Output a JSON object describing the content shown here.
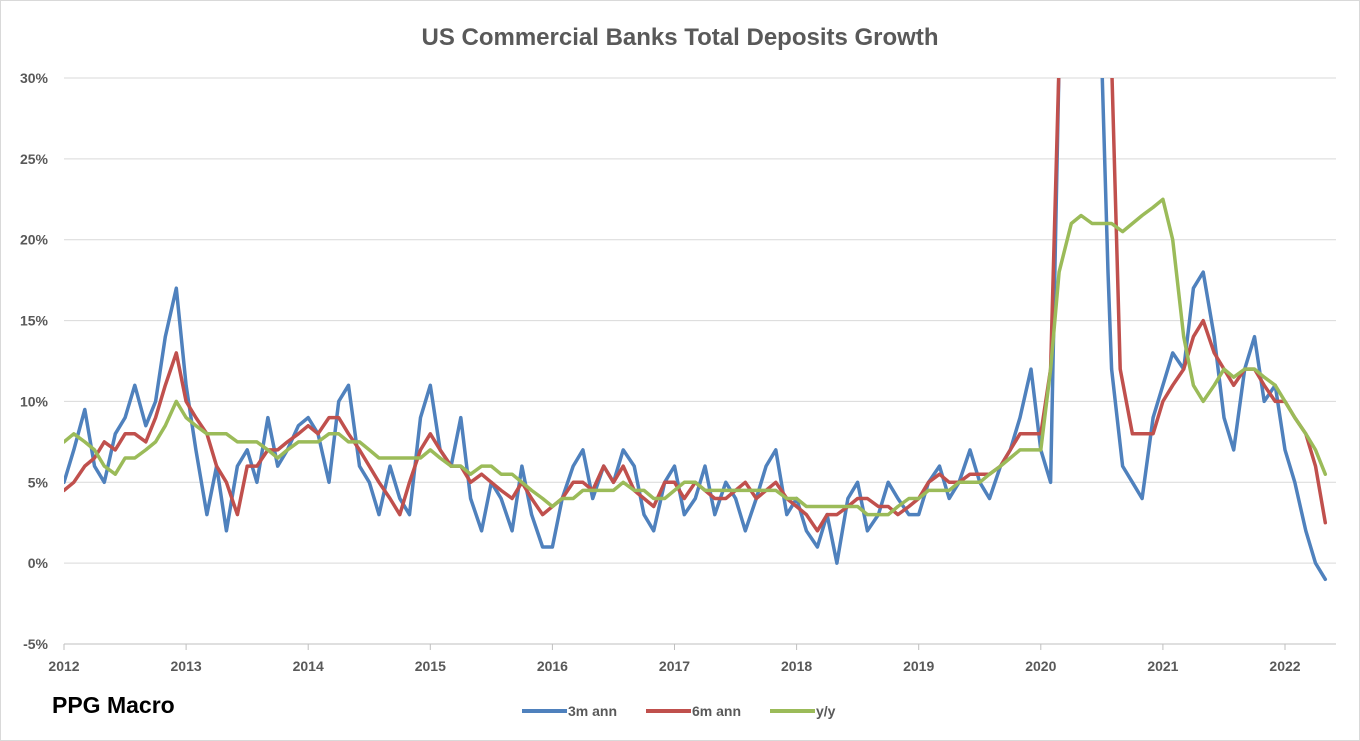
{
  "brand": "PPG Macro",
  "chart_data": {
    "type": "line",
    "title": "US Commercial Banks Total Deposits Growth",
    "xlabel": "",
    "ylabel": "",
    "xlim": [
      2012.0,
      2022.0
    ],
    "ylim": [
      -5,
      30
    ],
    "x_ticks": [
      "2012",
      "2013",
      "2014",
      "2015",
      "2016",
      "2017",
      "2018",
      "2019",
      "2020",
      "2021",
      "2022"
    ],
    "y_ticks": [
      "-5%",
      "0%",
      "5%",
      "10%",
      "15%",
      "20%",
      "25%",
      "30%"
    ],
    "grid": "horizontal",
    "legend_position": "bottom",
    "series": [
      {
        "name": "3m ann",
        "color": "#4f81bd",
        "x": [
          2012.0,
          2012.08,
          2012.17,
          2012.25,
          2012.33,
          2012.42,
          2012.5,
          2012.58,
          2012.67,
          2012.75,
          2012.83,
          2012.92,
          2013.0,
          2013.08,
          2013.17,
          2013.25,
          2013.33,
          2013.42,
          2013.5,
          2013.58,
          2013.67,
          2013.75,
          2013.83,
          2013.92,
          2014.0,
          2014.08,
          2014.17,
          2014.25,
          2014.33,
          2014.42,
          2014.5,
          2014.58,
          2014.67,
          2014.75,
          2014.83,
          2014.92,
          2015.0,
          2015.08,
          2015.17,
          2015.25,
          2015.33,
          2015.42,
          2015.5,
          2015.58,
          2015.67,
          2015.75,
          2015.83,
          2015.92,
          2016.0,
          2016.08,
          2016.17,
          2016.25,
          2016.33,
          2016.42,
          2016.5,
          2016.58,
          2016.67,
          2016.75,
          2016.83,
          2016.92,
          2017.0,
          2017.08,
          2017.17,
          2017.25,
          2017.33,
          2017.42,
          2017.5,
          2017.58,
          2017.67,
          2017.75,
          2017.83,
          2017.92,
          2018.0,
          2018.08,
          2018.17,
          2018.25,
          2018.33,
          2018.42,
          2018.5,
          2018.58,
          2018.67,
          2018.75,
          2018.83,
          2018.92,
          2019.0,
          2019.08,
          2019.17,
          2019.25,
          2019.33,
          2019.42,
          2019.5,
          2019.58,
          2019.67,
          2019.75,
          2019.83,
          2019.92,
          2020.0,
          2020.08,
          2020.15,
          2020.2,
          2020.25,
          2020.33,
          2020.42,
          2020.5,
          2020.55,
          2020.58,
          2020.67,
          2020.75,
          2020.83,
          2020.92,
          2021.0,
          2021.08,
          2021.17,
          2021.25,
          2021.33,
          2021.42,
          2021.5,
          2021.58,
          2021.67,
          2021.75,
          2021.83,
          2021.92,
          2022.0,
          2022.08,
          2022.17,
          2022.25,
          2022.33
        ],
        "values": [
          5,
          7,
          9.5,
          6,
          5,
          8,
          9,
          11,
          8.5,
          10,
          14,
          17,
          11,
          7,
          3,
          6,
          2,
          6,
          7,
          5,
          9,
          6,
          7,
          8.5,
          9,
          8,
          5,
          10,
          11,
          6,
          5,
          3,
          6,
          4,
          3,
          9,
          11,
          7,
          6,
          9,
          4,
          2,
          5,
          4,
          2,
          6,
          3,
          1,
          1,
          4,
          6,
          7,
          4,
          6,
          5,
          7,
          6,
          3,
          2,
          5,
          6,
          3,
          4,
          6,
          3,
          5,
          4,
          2,
          4,
          6,
          7,
          3,
          4,
          2,
          1,
          3,
          0,
          4,
          5,
          2,
          3,
          5,
          4,
          3,
          3,
          5,
          6,
          4,
          5,
          7,
          5,
          4,
          6,
          7,
          9,
          12,
          7,
          5,
          31,
          31,
          31,
          31,
          31,
          31,
          18,
          12,
          6,
          5,
          4,
          9,
          11,
          13,
          12,
          17,
          18,
          14,
          9,
          7,
          12,
          14,
          10,
          11,
          7,
          5,
          2,
          0,
          -1
        ]
      },
      {
        "name": "6m ann",
        "color": "#c0504d",
        "x": [
          2012.0,
          2012.08,
          2012.17,
          2012.25,
          2012.33,
          2012.42,
          2012.5,
          2012.58,
          2012.67,
          2012.75,
          2012.83,
          2012.92,
          2013.0,
          2013.08,
          2013.17,
          2013.25,
          2013.33,
          2013.42,
          2013.5,
          2013.58,
          2013.67,
          2013.75,
          2013.83,
          2013.92,
          2014.0,
          2014.08,
          2014.17,
          2014.25,
          2014.33,
          2014.42,
          2014.5,
          2014.58,
          2014.67,
          2014.75,
          2014.83,
          2014.92,
          2015.0,
          2015.08,
          2015.17,
          2015.25,
          2015.33,
          2015.42,
          2015.5,
          2015.58,
          2015.67,
          2015.75,
          2015.83,
          2015.92,
          2016.0,
          2016.08,
          2016.17,
          2016.25,
          2016.33,
          2016.42,
          2016.5,
          2016.58,
          2016.67,
          2016.75,
          2016.83,
          2016.92,
          2017.0,
          2017.08,
          2017.17,
          2017.25,
          2017.33,
          2017.42,
          2017.5,
          2017.58,
          2017.67,
          2017.75,
          2017.83,
          2017.92,
          2018.0,
          2018.08,
          2018.17,
          2018.25,
          2018.33,
          2018.42,
          2018.5,
          2018.58,
          2018.67,
          2018.75,
          2018.83,
          2018.92,
          2019.0,
          2019.08,
          2019.17,
          2019.25,
          2019.33,
          2019.42,
          2019.5,
          2019.58,
          2019.67,
          2019.75,
          2019.83,
          2019.92,
          2020.0,
          2020.08,
          2020.15,
          2020.2,
          2020.25,
          2020.33,
          2020.42,
          2020.5,
          2020.58,
          2020.65,
          2020.75,
          2020.83,
          2020.92,
          2021.0,
          2021.08,
          2021.17,
          2021.25,
          2021.33,
          2021.42,
          2021.5,
          2021.58,
          2021.67,
          2021.75,
          2021.83,
          2021.92,
          2022.0,
          2022.08,
          2022.17,
          2022.25,
          2022.33
        ],
        "values": [
          4.5,
          5,
          6,
          6.5,
          7.5,
          7,
          8,
          8,
          7.5,
          9,
          11,
          13,
          10,
          9,
          8,
          6,
          5,
          3,
          6,
          6,
          7,
          7,
          7.5,
          8,
          8.5,
          8,
          9,
          9,
          8,
          7,
          6,
          5,
          4,
          3,
          5,
          7,
          8,
          7,
          6,
          6,
          5,
          5.5,
          5,
          4.5,
          4,
          5,
          4,
          3,
          3.5,
          4,
          5,
          5,
          4.5,
          6,
          5,
          6,
          4.5,
          4,
          3.5,
          5,
          5,
          4,
          5,
          4.5,
          4,
          4,
          4.5,
          5,
          4,
          4.5,
          5,
          4,
          3.5,
          3,
          2,
          3,
          3,
          3.5,
          4,
          4,
          3.5,
          3.5,
          3,
          3.5,
          4,
          5,
          5.5,
          5,
          5,
          5.5,
          5.5,
          5.5,
          6,
          7,
          8,
          8,
          8,
          12,
          31,
          31,
          31,
          31,
          31,
          31,
          31,
          12,
          8,
          8,
          8,
          10,
          11,
          12,
          14,
          15,
          13,
          12,
          11,
          12,
          12,
          11,
          10,
          10,
          9,
          8,
          6,
          2.5
        ]
      },
      {
        "name": "y/y",
        "color": "#9bbb59",
        "x": [
          2012.0,
          2012.08,
          2012.17,
          2012.25,
          2012.33,
          2012.42,
          2012.5,
          2012.58,
          2012.67,
          2012.75,
          2012.83,
          2012.92,
          2013.0,
          2013.08,
          2013.17,
          2013.25,
          2013.33,
          2013.42,
          2013.5,
          2013.58,
          2013.67,
          2013.75,
          2013.83,
          2013.92,
          2014.0,
          2014.08,
          2014.17,
          2014.25,
          2014.33,
          2014.42,
          2014.5,
          2014.58,
          2014.67,
          2014.75,
          2014.83,
          2014.92,
          2015.0,
          2015.08,
          2015.17,
          2015.25,
          2015.33,
          2015.42,
          2015.5,
          2015.58,
          2015.67,
          2015.75,
          2015.83,
          2015.92,
          2016.0,
          2016.08,
          2016.17,
          2016.25,
          2016.33,
          2016.42,
          2016.5,
          2016.58,
          2016.67,
          2016.75,
          2016.83,
          2016.92,
          2017.0,
          2017.08,
          2017.17,
          2017.25,
          2017.33,
          2017.42,
          2017.5,
          2017.58,
          2017.67,
          2017.75,
          2017.83,
          2017.92,
          2018.0,
          2018.08,
          2018.17,
          2018.25,
          2018.33,
          2018.42,
          2018.5,
          2018.58,
          2018.67,
          2018.75,
          2018.83,
          2018.92,
          2019.0,
          2019.08,
          2019.17,
          2019.25,
          2019.33,
          2019.42,
          2019.5,
          2019.58,
          2019.67,
          2019.75,
          2019.83,
          2019.92,
          2020.0,
          2020.08,
          2020.15,
          2020.25,
          2020.33,
          2020.42,
          2020.5,
          2020.58,
          2020.67,
          2020.75,
          2020.83,
          2020.92,
          2021.0,
          2021.08,
          2021.17,
          2021.25,
          2021.33,
          2021.42,
          2021.5,
          2021.58,
          2021.67,
          2021.75,
          2021.83,
          2021.92,
          2022.0,
          2022.08,
          2022.17,
          2022.25,
          2022.33
        ],
        "values": [
          7.5,
          8,
          7.5,
          7,
          6,
          5.5,
          6.5,
          6.5,
          7,
          7.5,
          8.5,
          10,
          9,
          8.5,
          8,
          8,
          8,
          7.5,
          7.5,
          7.5,
          7,
          6.5,
          7,
          7.5,
          7.5,
          7.5,
          8,
          8,
          7.5,
          7.5,
          7,
          6.5,
          6.5,
          6.5,
          6.5,
          6.5,
          7,
          6.5,
          6,
          6,
          5.5,
          6,
          6,
          5.5,
          5.5,
          5,
          4.5,
          4,
          3.5,
          4,
          4,
          4.5,
          4.5,
          4.5,
          4.5,
          5,
          4.5,
          4.5,
          4,
          4,
          4.5,
          5,
          5,
          4.5,
          4.5,
          4.5,
          4.5,
          4.5,
          4.5,
          4.5,
          4.5,
          4,
          4,
          3.5,
          3.5,
          3.5,
          3.5,
          3.5,
          3.5,
          3,
          3,
          3,
          3.5,
          4,
          4,
          4.5,
          4.5,
          4.5,
          5,
          5,
          5,
          5.5,
          6,
          6.5,
          7,
          7,
          7,
          12,
          18,
          21,
          21.5,
          21,
          21,
          21,
          20.5,
          21,
          21.5,
          22,
          22.5,
          20,
          14,
          11,
          10,
          11,
          12,
          11.5,
          12,
          12,
          11.5,
          11,
          10,
          9,
          8,
          7,
          5.5
        ]
      }
    ]
  }
}
